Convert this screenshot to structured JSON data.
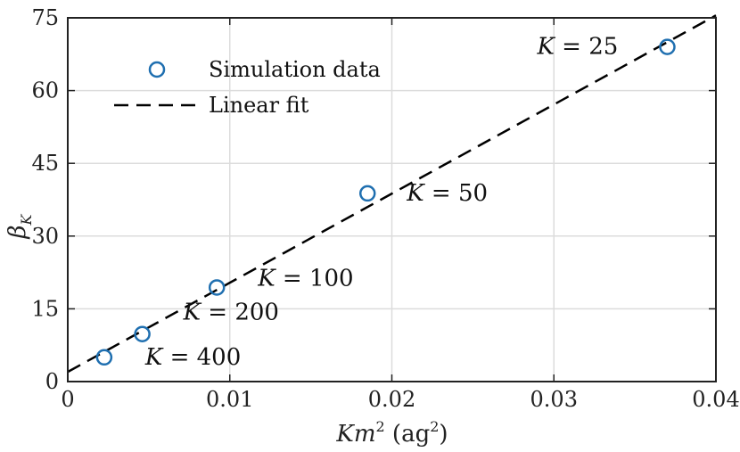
{
  "chart_data": {
    "type": "scatter",
    "xlabel": "Km² (ag²)",
    "ylabel": "β_K",
    "xlim": [
      0,
      0.04
    ],
    "ylim": [
      0,
      75
    ],
    "xticks": [
      0,
      0.01,
      0.02,
      0.03,
      0.04
    ],
    "xtick_labels": [
      "0",
      "0.01",
      "0.02",
      "0.03",
      "0.04"
    ],
    "yticks": [
      0,
      15,
      30,
      45,
      60,
      75
    ],
    "ytick_labels": [
      "0",
      "15",
      "30",
      "45",
      "60",
      "75"
    ],
    "grid": true,
    "legend_position": "top-left",
    "colors": {
      "marker": "#1f6fb0",
      "fit": "#000000",
      "grid": "#dcdcdc",
      "axis": "#222222"
    },
    "series": [
      {
        "name": "Simulation data",
        "kind": "scatter",
        "x": [
          0.00225,
          0.0046,
          0.0092,
          0.0185,
          0.037
        ],
        "y": [
          5.0,
          9.8,
          19.4,
          38.8,
          69.0
        ],
        "annotations": [
          "K = 400",
          "K = 200",
          "K = 100",
          "K = 50",
          "K = 25"
        ]
      },
      {
        "name": "Linear fit",
        "kind": "line",
        "style": "dashed",
        "x": [
          0,
          0.04
        ],
        "y": [
          2.0,
          75.5
        ]
      }
    ]
  }
}
